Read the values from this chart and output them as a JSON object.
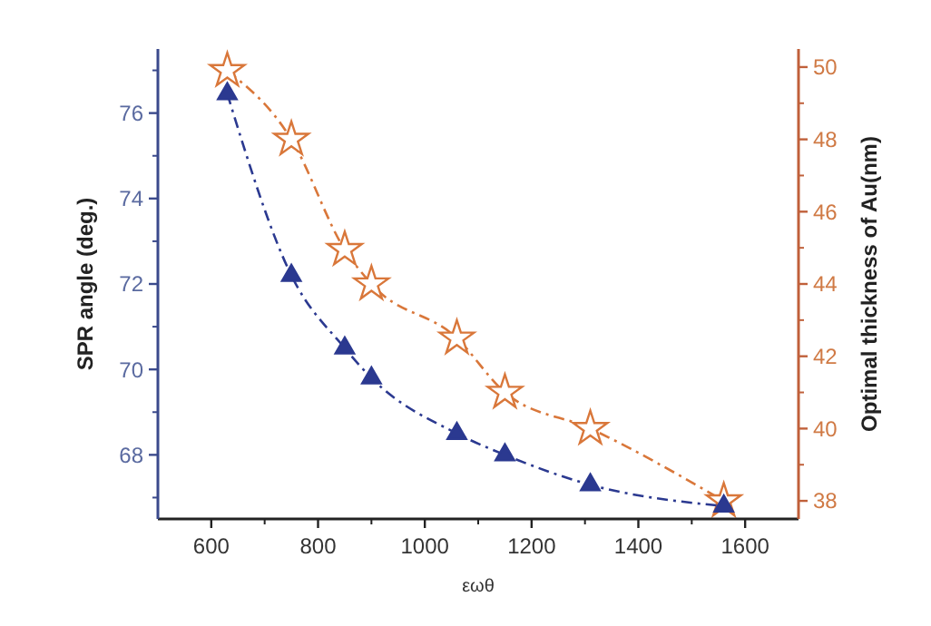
{
  "chart_data": {
    "type": "line",
    "xlabel": "εωθ",
    "ylabel": "SPR angle (deg.)",
    "y2label": "Optimal thickness of Au(nm)",
    "x": [
      630,
      750,
      850,
      900,
      1060,
      1150,
      1310,
      1560
    ],
    "series": [
      {
        "color": "#2b3990",
        "marker": "triangle",
        "line_style": "dashed",
        "values": [
          76.45,
          72.2,
          70.5,
          69.8,
          68.5,
          68.0,
          67.3,
          66.8
        ]
      },
      {
        "color": "#d9773a",
        "marker": "star",
        "line_style": "dashed",
        "axis": "y2",
        "values": [
          49.9,
          48.0,
          44.95,
          44.0,
          42.5,
          41.0,
          40.0,
          38.0
        ]
      }
    ],
    "xlim": [
      500,
      1700
    ],
    "xticks": [
      600,
      800,
      1000,
      1200,
      1400,
      1600
    ],
    "ylim": [
      66.5,
      77.5
    ],
    "yticks": [
      68,
      70,
      72,
      74,
      76
    ],
    "y2lim": [
      37.5,
      50.5
    ],
    "y2ticks": [
      38,
      40,
      42,
      44,
      46,
      48,
      50
    ]
  }
}
